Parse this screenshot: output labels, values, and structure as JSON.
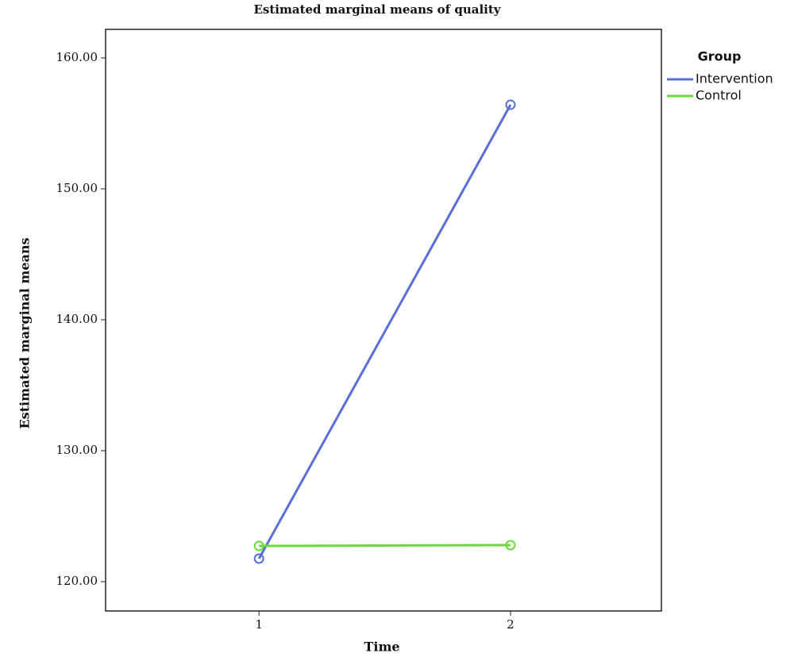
{
  "chart_data": {
    "type": "line",
    "title": "Estimated marginal means of quality",
    "x_label": "Time",
    "y_label": "Estimated marginal means",
    "legend_title": "Group",
    "x": [
      1,
      2
    ],
    "xlim": [
      0.39,
      2.6
    ],
    "xticks": [
      1,
      2
    ],
    "ylim": [
      117.76,
      162.18
    ],
    "yticks": [
      {
        "value": 120,
        "label": "120.00"
      },
      {
        "value": 130,
        "label": "130.00"
      },
      {
        "value": 140,
        "label": "140.00"
      },
      {
        "value": 150,
        "label": "150.00"
      },
      {
        "value": 160,
        "label": "160.00"
      }
    ],
    "series": [
      {
        "name": "Intervention",
        "color": "#5a6fd6",
        "values": [
          121.76,
          156.42
        ]
      },
      {
        "name": "Control",
        "color": "#66dd33",
        "values": [
          122.73,
          122.79
        ]
      }
    ]
  }
}
